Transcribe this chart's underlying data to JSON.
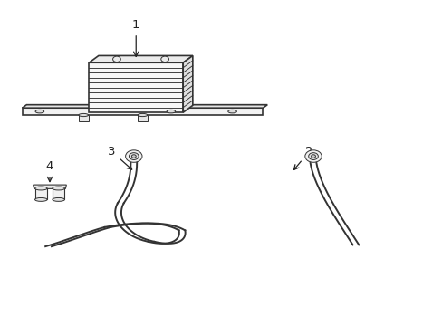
{
  "bg_color": "#ffffff",
  "line_color": "#333333",
  "label_color": "#222222"
}
